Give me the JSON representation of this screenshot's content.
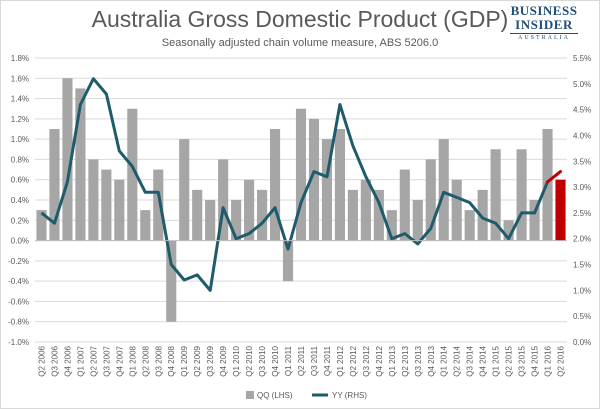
{
  "header": {
    "title": "Australia Gross Domestic Product (GDP)",
    "subtitle": "Seasonally adjusted chain volume measure, ABS 5206.0"
  },
  "logo": {
    "line1": "BUSINESS",
    "line2": "INSIDER",
    "sub": "AUSTRALIA"
  },
  "colors": {
    "bar": "#a6a6a6",
    "bar_highlight": "#c00000",
    "line": "#1f5c6b",
    "line_highlight": "#c00000",
    "grid": "#d9d9d9",
    "text": "#595959"
  },
  "chart_data": {
    "type": "bar",
    "title": "Australia Gross Domestic Product (GDP)",
    "subtitle": "Seasonally adjusted chain volume measure, ABS 5206.0",
    "categories": [
      "Q2 2006",
      "Q3 2006",
      "Q4 2006",
      "Q1 2007",
      "Q2 2007",
      "Q3 2007",
      "Q4 2007",
      "Q1 2008",
      "Q2 2008",
      "Q3 2008",
      "Q4 2008",
      "Q1 2009",
      "Q2 2009",
      "Q3 2009",
      "Q4 2009",
      "Q1 2010",
      "Q2 2010",
      "Q3 2010",
      "Q4 2010",
      "Q1 2011",
      "Q2 2011",
      "Q3 2011",
      "Q4 2011",
      "Q1 2012",
      "Q2 2012",
      "Q3 2012",
      "Q4 2012",
      "Q1 2013",
      "Q2 2013",
      "Q3 2013",
      "Q4 2013",
      "Q1 2014",
      "Q2 2014",
      "Q3 2014",
      "Q4 2014",
      "Q1 2015",
      "Q2 2015",
      "Q3 2015",
      "Q4 2015",
      "Q1 2016",
      "Q2 2016"
    ],
    "series": [
      {
        "name": "QQ (LHS)",
        "type": "bar",
        "axis": "left",
        "values": [
          0.3,
          1.1,
          1.6,
          1.5,
          0.8,
          0.7,
          0.6,
          1.3,
          0.3,
          0.7,
          -0.8,
          1.0,
          0.5,
          0.4,
          0.8,
          0.4,
          0.6,
          0.5,
          1.1,
          -0.4,
          1.3,
          1.2,
          1.0,
          1.1,
          0.5,
          0.6,
          0.5,
          0.3,
          0.7,
          0.4,
          0.8,
          1.0,
          0.6,
          0.3,
          0.5,
          0.9,
          0.2,
          0.9,
          0.4,
          1.1,
          0.6
        ]
      },
      {
        "name": "YY (RHS)",
        "type": "line",
        "axis": "right",
        "values": [
          2.5,
          2.3,
          3.1,
          4.6,
          5.1,
          4.8,
          3.7,
          3.4,
          2.9,
          2.9,
          1.5,
          1.2,
          1.3,
          1.0,
          2.6,
          2.0,
          2.1,
          2.3,
          2.6,
          1.8,
          2.7,
          3.3,
          3.2,
          4.6,
          3.8,
          3.2,
          2.7,
          2.0,
          2.1,
          1.9,
          2.2,
          2.9,
          2.8,
          2.7,
          2.4,
          2.3,
          2.0,
          2.5,
          2.5,
          3.1,
          3.3
        ]
      }
    ],
    "highlight_last": true,
    "ylim_left": [
      -1.0,
      1.8
    ],
    "yticks_left": [
      "1.8%",
      "1.6%",
      "1.4%",
      "1.2%",
      "1.0%",
      "0.8%",
      "0.6%",
      "0.4%",
      "0.2%",
      "0.0%",
      "-0.2%",
      "-0.4%",
      "-0.6%",
      "-0.8%",
      "-1.0%"
    ],
    "ylim_right": [
      0.0,
      5.5
    ],
    "yticks_right": [
      "5.5%",
      "5.0%",
      "4.5%",
      "4.0%",
      "3.5%",
      "3.0%",
      "2.5%",
      "2.0%",
      "1.5%",
      "1.0%",
      "0.5%",
      "0.0%"
    ],
    "grid": true,
    "legend_position": "bottom"
  }
}
